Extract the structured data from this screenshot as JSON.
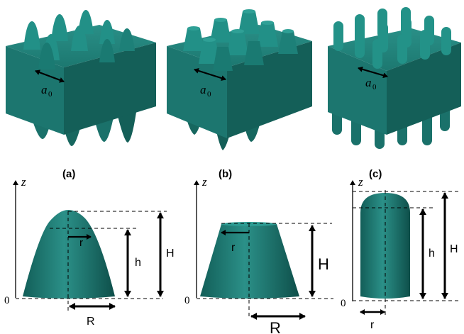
{
  "panels": [
    {
      "tag": "(a)",
      "lattice_label": "a",
      "lattice_sub": "0",
      "axis": "z",
      "origin": "0",
      "r": "r",
      "h": "h",
      "H": "H",
      "R": "R"
    },
    {
      "tag": "(b)",
      "lattice_label": "a",
      "lattice_sub": "0",
      "axis": "z",
      "origin": "0",
      "r": "r",
      "H": "H",
      "R": "R"
    },
    {
      "tag": "(c)",
      "lattice_label": "a",
      "lattice_sub": "0",
      "axis": "z",
      "origin": "0",
      "r": "r",
      "h": "h",
      "H": "H"
    }
  ],
  "colors": {
    "fill": "#1e7b74",
    "fill_dark": "#0f5752",
    "fill_light": "#2e948b",
    "line": "#000000"
  }
}
